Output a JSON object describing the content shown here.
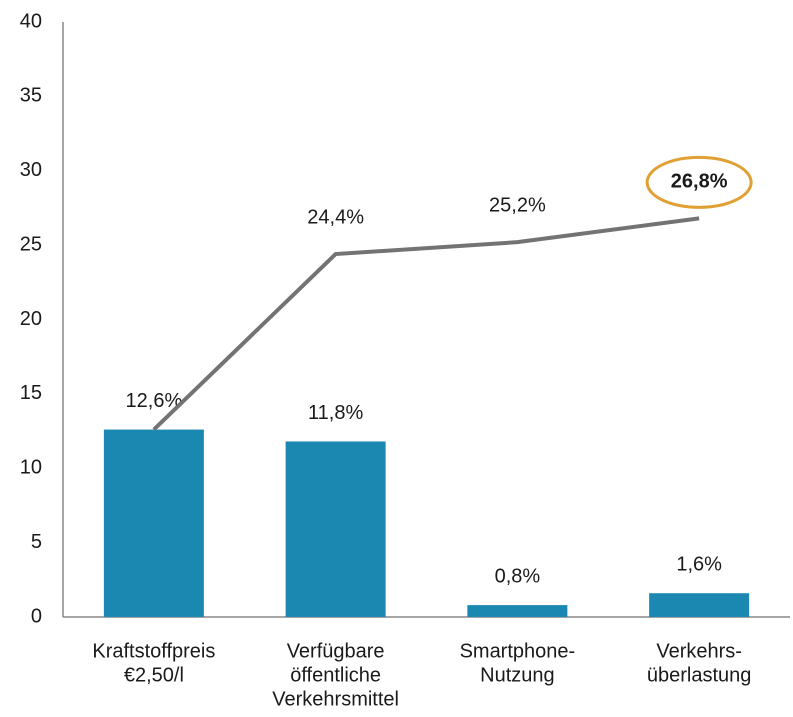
{
  "chart_data": {
    "type": "bar+line",
    "categories": [
      [
        "Kraftstoffpreis",
        "€2,50/l"
      ],
      [
        "Verfügbare",
        "öffentliche",
        "Verkehrsmittel"
      ],
      [
        "Smartphone-",
        "Nutzung"
      ],
      [
        "Verkehrs-",
        "überlastung"
      ]
    ],
    "series": [
      {
        "type": "bar",
        "color": "#1b88b1",
        "values": [
          12.6,
          11.8,
          0.8,
          1.6
        ],
        "value_labels": [
          "12,6%",
          "11,8%",
          "0,8%",
          "1,6%"
        ]
      },
      {
        "type": "line",
        "color": "#737373",
        "values": [
          12.6,
          24.4,
          25.2,
          26.8
        ],
        "value_labels": [
          null,
          "24,4%",
          "25,2%",
          "26,8%"
        ],
        "highlight_point": 3,
        "highlight_color": "#e0a034"
      }
    ],
    "ylim": [
      0,
      40
    ],
    "yticks": [
      0,
      5,
      10,
      15,
      20,
      25,
      30,
      35,
      40
    ],
    "grid": false
  }
}
